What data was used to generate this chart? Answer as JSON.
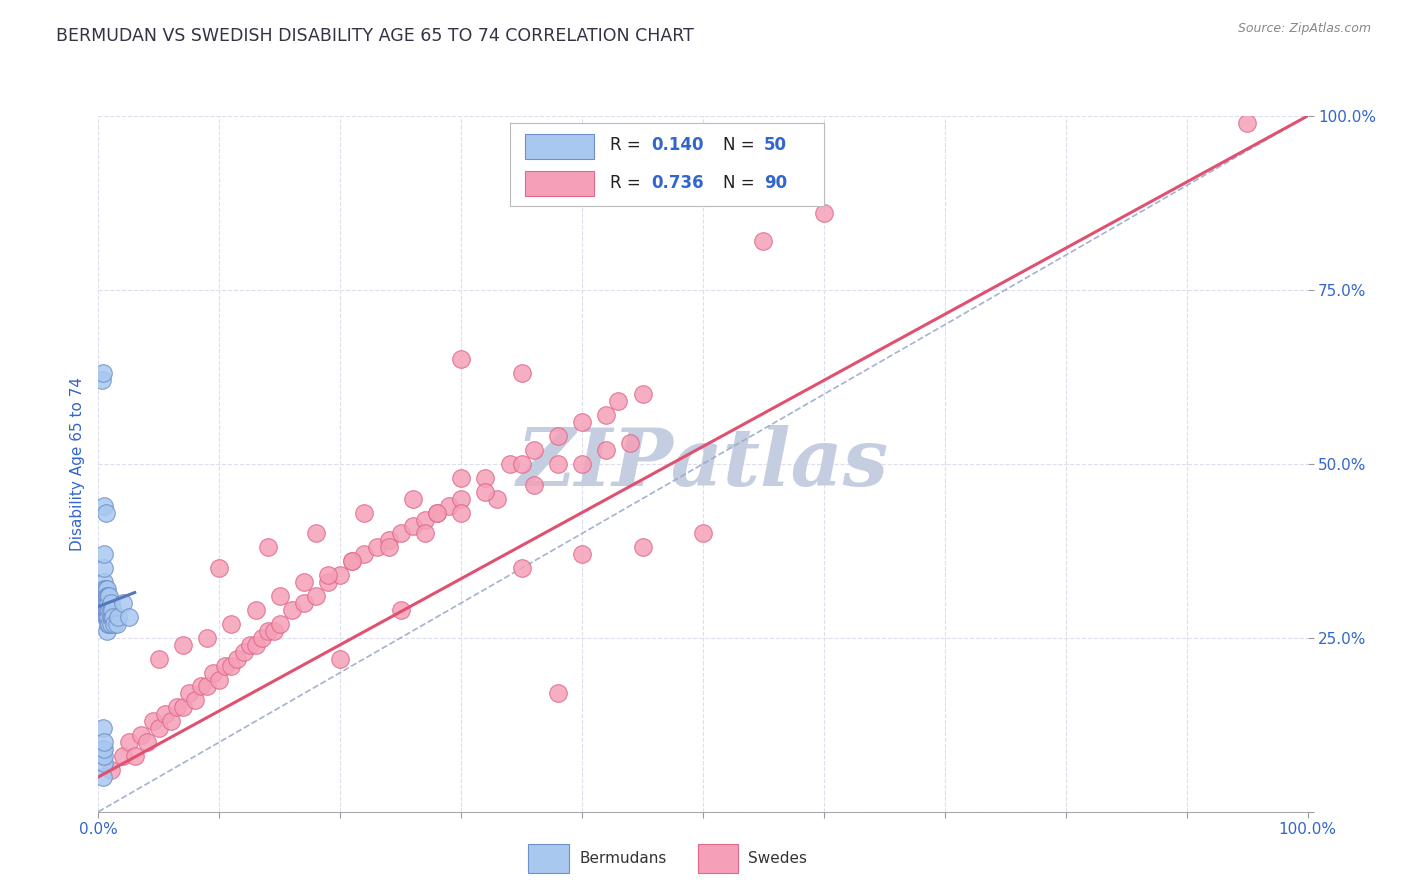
{
  "title": "BERMUDAN VS SWEDISH DISABILITY AGE 65 TO 74 CORRELATION CHART",
  "source": "Source: ZipAtlas.com",
  "ylabel": "Disability Age 65 to 74",
  "xlim": [
    0.0,
    1.0
  ],
  "ylim": [
    0.0,
    1.0
  ],
  "legend_bermudan": "Bermudans",
  "legend_swedes": "Swedes",
  "r_bermudan": 0.14,
  "n_bermudan": 50,
  "r_swedes": 0.736,
  "n_swedes": 90,
  "bermudan_color": "#A8C8F0",
  "swedes_color": "#F5A0B8",
  "bermudan_edge_color": "#7090C8",
  "swedes_edge_color": "#E06888",
  "bermudan_line_color": "#5577BB",
  "swedes_line_color": "#E05070",
  "diagonal_color": "#99AACC",
  "watermark_color": "#C5CDE0",
  "background_color": "#FFFFFF",
  "title_color": "#333344",
  "axis_tick_color": "#3366CC",
  "grid_color": "#DDDDEE",
  "bermudan_x": [
    0.003,
    0.003,
    0.004,
    0.004,
    0.004,
    0.004,
    0.004,
    0.005,
    0.005,
    0.005,
    0.005,
    0.005,
    0.005,
    0.005,
    0.005,
    0.005,
    0.005,
    0.005,
    0.005,
    0.006,
    0.006,
    0.006,
    0.006,
    0.006,
    0.007,
    0.007,
    0.007,
    0.007,
    0.007,
    0.007,
    0.008,
    0.008,
    0.008,
    0.008,
    0.008,
    0.009,
    0.009,
    0.009,
    0.01,
    0.01,
    0.01,
    0.01,
    0.011,
    0.011,
    0.012,
    0.013,
    0.015,
    0.016,
    0.02,
    0.025
  ],
  "bermudan_y": [
    0.08,
    0.62,
    0.05,
    0.09,
    0.12,
    0.3,
    0.63,
    0.07,
    0.08,
    0.09,
    0.1,
    0.29,
    0.31,
    0.33,
    0.35,
    0.37,
    0.3,
    0.32,
    0.44,
    0.28,
    0.3,
    0.32,
    0.29,
    0.43,
    0.26,
    0.28,
    0.3,
    0.32,
    0.29,
    0.31,
    0.27,
    0.29,
    0.31,
    0.28,
    0.3,
    0.27,
    0.29,
    0.31,
    0.27,
    0.28,
    0.29,
    0.3,
    0.28,
    0.29,
    0.28,
    0.27,
    0.27,
    0.28,
    0.3,
    0.28
  ],
  "swedes_x": [
    0.01,
    0.02,
    0.025,
    0.03,
    0.035,
    0.04,
    0.045,
    0.05,
    0.055,
    0.06,
    0.065,
    0.07,
    0.075,
    0.08,
    0.085,
    0.09,
    0.095,
    0.1,
    0.105,
    0.11,
    0.115,
    0.12,
    0.125,
    0.13,
    0.135,
    0.14,
    0.145,
    0.15,
    0.16,
    0.17,
    0.18,
    0.19,
    0.2,
    0.21,
    0.22,
    0.23,
    0.24,
    0.25,
    0.26,
    0.27,
    0.28,
    0.29,
    0.3,
    0.32,
    0.34,
    0.36,
    0.38,
    0.4,
    0.42,
    0.45,
    0.05,
    0.07,
    0.09,
    0.11,
    0.13,
    0.15,
    0.17,
    0.19,
    0.21,
    0.24,
    0.27,
    0.3,
    0.33,
    0.36,
    0.4,
    0.44,
    0.1,
    0.14,
    0.18,
    0.22,
    0.26,
    0.3,
    0.35,
    0.55,
    0.6,
    0.35,
    0.4,
    0.45,
    0.5,
    0.28,
    0.32,
    0.38,
    0.42,
    0.35,
    0.3,
    0.25,
    0.2,
    0.43,
    0.38,
    0.95
  ],
  "swedes_y": [
    0.06,
    0.08,
    0.1,
    0.08,
    0.11,
    0.1,
    0.13,
    0.12,
    0.14,
    0.13,
    0.15,
    0.15,
    0.17,
    0.16,
    0.18,
    0.18,
    0.2,
    0.19,
    0.21,
    0.21,
    0.22,
    0.23,
    0.24,
    0.24,
    0.25,
    0.26,
    0.26,
    0.27,
    0.29,
    0.3,
    0.31,
    0.33,
    0.34,
    0.36,
    0.37,
    0.38,
    0.39,
    0.4,
    0.41,
    0.42,
    0.43,
    0.44,
    0.45,
    0.48,
    0.5,
    0.52,
    0.54,
    0.56,
    0.57,
    0.6,
    0.22,
    0.24,
    0.25,
    0.27,
    0.29,
    0.31,
    0.33,
    0.34,
    0.36,
    0.38,
    0.4,
    0.43,
    0.45,
    0.47,
    0.5,
    0.53,
    0.35,
    0.38,
    0.4,
    0.43,
    0.45,
    0.48,
    0.5,
    0.82,
    0.86,
    0.35,
    0.37,
    0.38,
    0.4,
    0.43,
    0.46,
    0.5,
    0.52,
    0.63,
    0.65,
    0.29,
    0.22,
    0.59,
    0.17,
    0.99
  ],
  "swedes_line_x0": 0.0,
  "swedes_line_y0": 0.05,
  "swedes_line_x1": 1.0,
  "swedes_line_y1": 1.0,
  "bermudan_line_x0": 0.0,
  "bermudan_line_y0": 0.295,
  "bermudan_line_x1": 0.03,
  "bermudan_line_y1": 0.315
}
